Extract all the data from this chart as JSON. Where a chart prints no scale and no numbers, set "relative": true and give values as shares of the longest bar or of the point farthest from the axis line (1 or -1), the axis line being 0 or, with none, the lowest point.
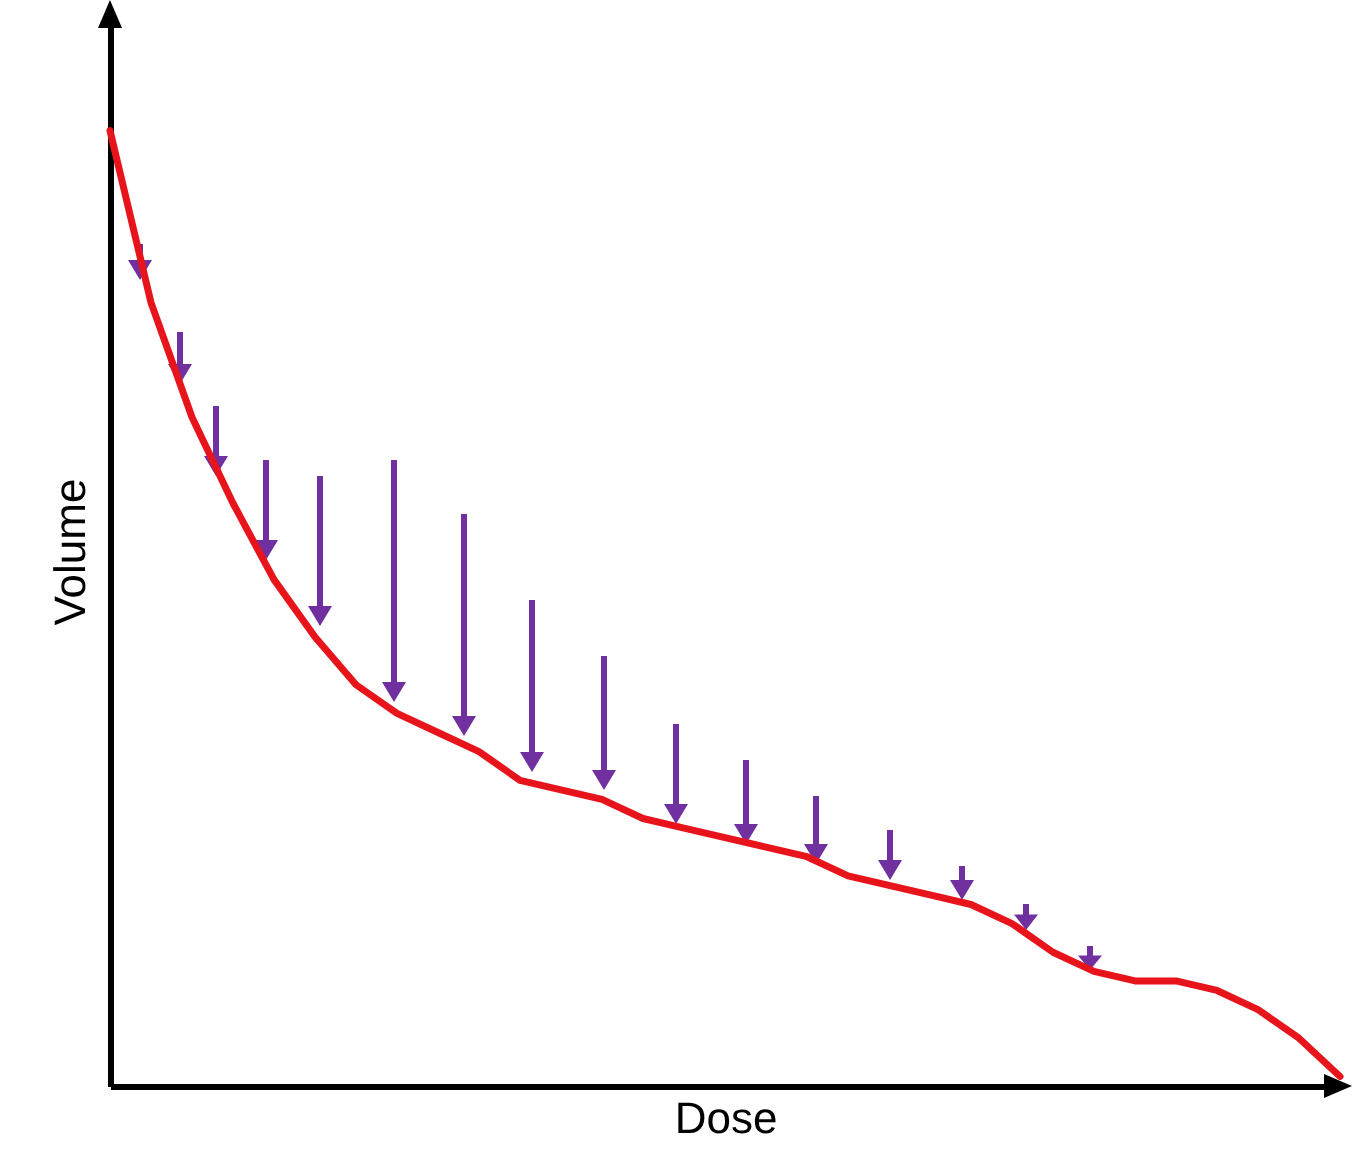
{
  "chart_data": {
    "type": "line",
    "relative": true,
    "xlabel": "Dose",
    "ylabel": "Volume",
    "categories": [
      null,
      null,
      null,
      null,
      null,
      null,
      null,
      null,
      null,
      null,
      null,
      null,
      null,
      null,
      null,
      null,
      null,
      null,
      null,
      null,
      null,
      null,
      null,
      null,
      null,
      null,
      null,
      null,
      null,
      null,
      null
    ],
    "series": [
      {
        "color": "#e8141c",
        "values": [
          1,
          0.82,
          0.7,
          0.61,
          0.53,
          0.47,
          0.42,
          0.39,
          0.37,
          0.35,
          0.32,
          0.31,
          0.3,
          0.28,
          0.27,
          0.26,
          0.25,
          0.24,
          0.22,
          0.21,
          0.2,
          0.19,
          0.17,
          0.14,
          0.12,
          0.11,
          0.11,
          0.1,
          0.08,
          0.05,
          0.01
        ]
      }
    ]
  }
}
